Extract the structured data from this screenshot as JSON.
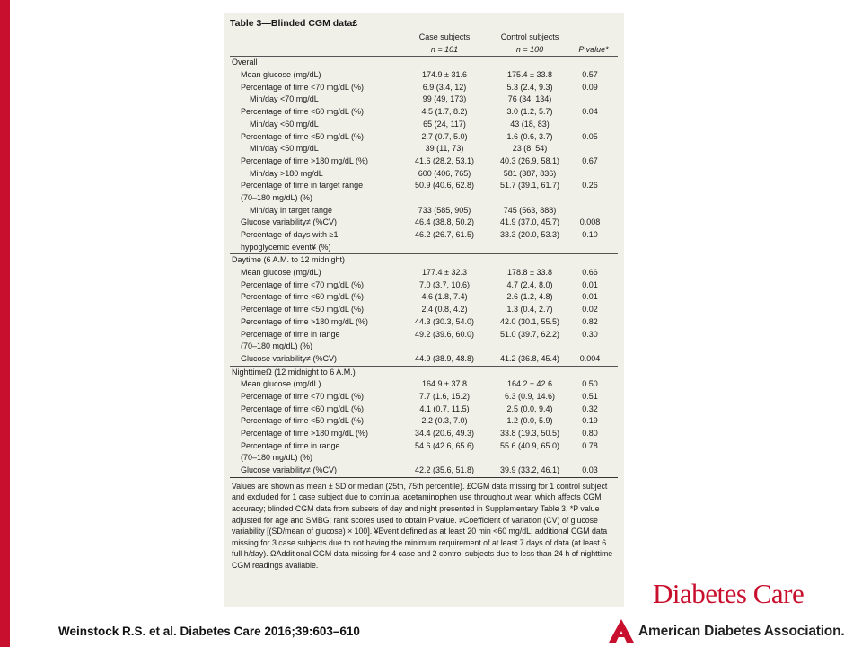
{
  "table": {
    "title": "Table 3—Blinded CGM data£",
    "headers": {
      "case_line1": "Case subjects",
      "case_line2": "n = 101",
      "ctrl_line1": "Control subjects",
      "ctrl_line2": "n = 100",
      "p": "P value*"
    },
    "sections": [
      {
        "heading": "Overall",
        "rows": [
          {
            "label": "Mean glucose (mg/dL)",
            "indent": 1,
            "case": "174.9 ± 31.6",
            "ctrl": "175.4 ± 33.8",
            "p": "0.57"
          },
          {
            "label": "Percentage of time <70 mg/dL (%)",
            "indent": 1,
            "case": "6.9 (3.4, 12)",
            "ctrl": "5.3 (2.4, 9.3)",
            "p": "0.09"
          },
          {
            "label": "Min/day <70 mg/dL",
            "indent": 2,
            "case": "99 (49, 173)",
            "ctrl": "76 (34, 134)",
            "p": ""
          },
          {
            "label": "Percentage of time <60 mg/dL (%)",
            "indent": 1,
            "case": "4.5 (1.7, 8.2)",
            "ctrl": "3.0 (1.2, 5.7)",
            "p": "0.04"
          },
          {
            "label": "Min/day <60 mg/dL",
            "indent": 2,
            "case": "65 (24, 117)",
            "ctrl": "43 (18, 83)",
            "p": ""
          },
          {
            "label": "Percentage of time <50 mg/dL (%)",
            "indent": 1,
            "case": "2.7 (0.7, 5.0)",
            "ctrl": "1.6 (0.6, 3.7)",
            "p": "0.05"
          },
          {
            "label": "Min/day <50 mg/dL",
            "indent": 2,
            "case": "39 (11, 73)",
            "ctrl": "23 (8, 54)",
            "p": ""
          },
          {
            "label": "Percentage of time >180 mg/dL (%)",
            "indent": 1,
            "case": "41.6 (28.2, 53.1)",
            "ctrl": "40.3 (26.9, 58.1)",
            "p": "0.67"
          },
          {
            "label": "Min/day >180 mg/dL",
            "indent": 2,
            "case": "600 (406, 765)",
            "ctrl": "581 (387, 836)",
            "p": ""
          },
          {
            "label": "Percentage of time in target range",
            "indent": 1,
            "case": "50.9 (40.6, 62.8)",
            "ctrl": "51.7 (39.1, 61.7)",
            "p": "0.26"
          },
          {
            "label": "(70–180 mg/dL) (%)",
            "indent": 1,
            "case": "",
            "ctrl": "",
            "p": ""
          },
          {
            "label": "Min/day in target range",
            "indent": 2,
            "case": "733 (585, 905)",
            "ctrl": "745 (563, 888)",
            "p": ""
          },
          {
            "label": "Glucose variability≠ (%CV)",
            "indent": 1,
            "case": "46.4 (38.8, 50.2)",
            "ctrl": "41.9 (37.0, 45.7)",
            "p": "0.008"
          },
          {
            "label": "Percentage of days with ≥1",
            "indent": 1,
            "case": "46.2 (26.7, 61.5)",
            "ctrl": "33.3 (20.0, 53.3)",
            "p": "0.10"
          },
          {
            "label": "hypoglycemic event¥ (%)",
            "indent": 1,
            "case": "",
            "ctrl": "",
            "p": ""
          }
        ]
      },
      {
        "heading": "Daytime (6 A.M. to 12 midnight)",
        "rows": [
          {
            "label": "Mean glucose (mg/dL)",
            "indent": 1,
            "case": "177.4 ± 32.3",
            "ctrl": "178.8 ± 33.8",
            "p": "0.66"
          },
          {
            "label": "Percentage of time <70 mg/dL (%)",
            "indent": 1,
            "case": "7.0 (3.7, 10.6)",
            "ctrl": "4.7 (2.4, 8.0)",
            "p": "0.01"
          },
          {
            "label": "Percentage of time <60 mg/dL (%)",
            "indent": 1,
            "case": "4.6 (1.8, 7.4)",
            "ctrl": "2.6 (1.2, 4.8)",
            "p": "0.01"
          },
          {
            "label": "Percentage of time <50 mg/dL (%)",
            "indent": 1,
            "case": "2.4 (0.8, 4.2)",
            "ctrl": "1.3 (0.4, 2.7)",
            "p": "0.02"
          },
          {
            "label": "Percentage of time >180 mg/dL (%)",
            "indent": 1,
            "case": "44.3 (30.3, 54.0)",
            "ctrl": "42.0 (30.1, 55.5)",
            "p": "0.82"
          },
          {
            "label": "Percentage of time in range",
            "indent": 1,
            "case": "49.2 (39.6, 60.0)",
            "ctrl": "51.0 (39.7, 62.2)",
            "p": "0.30"
          },
          {
            "label": "(70–180 mg/dL) (%)",
            "indent": 1,
            "case": "",
            "ctrl": "",
            "p": ""
          },
          {
            "label": "Glucose variability≠ (%CV)",
            "indent": 1,
            "case": "44.9 (38.9, 48.8)",
            "ctrl": "41.2 (36.8, 45.4)",
            "p": "0.004"
          }
        ]
      },
      {
        "heading": "NighttimeΩ (12 midnight to 6 A.M.)",
        "rows": [
          {
            "label": "Mean glucose (mg/dL)",
            "indent": 1,
            "case": "164.9 ± 37.8",
            "ctrl": "164.2 ± 42.6",
            "p": "0.50"
          },
          {
            "label": "Percentage of time <70 mg/dL (%)",
            "indent": 1,
            "case": "7.7 (1.6, 15.2)",
            "ctrl": "6.3 (0.9, 14.6)",
            "p": "0.51"
          },
          {
            "label": "Percentage of time <60 mg/dL (%)",
            "indent": 1,
            "case": "4.1 (0.7, 11.5)",
            "ctrl": "2.5 (0.0, 9.4)",
            "p": "0.32"
          },
          {
            "label": "Percentage of time <50 mg/dL (%)",
            "indent": 1,
            "case": "2.2 (0.3, 7.0)",
            "ctrl": "1.2 (0.0, 5.9)",
            "p": "0.19"
          },
          {
            "label": "Percentage of time >180 mg/dL (%)",
            "indent": 1,
            "case": "34.4 (20.6, 49.3)",
            "ctrl": "33.8 (19.3, 50.5)",
            "p": "0.80"
          },
          {
            "label": "Percentage of time in range",
            "indent": 1,
            "case": "54.6 (42.6, 65.6)",
            "ctrl": "55.6 (40.9, 65.0)",
            "p": "0.78"
          },
          {
            "label": "(70–180 mg/dL) (%)",
            "indent": 1,
            "case": "",
            "ctrl": "",
            "p": ""
          },
          {
            "label": "Glucose variability≠ (%CV)",
            "indent": 1,
            "case": "42.2 (35.6, 51.8)",
            "ctrl": "39.9 (33.2, 46.1)",
            "p": "0.03"
          }
        ]
      }
    ],
    "footnote": "Values are shown as mean ± SD or median (25th, 75th percentile). £CGM data missing for 1 control subject and excluded for 1 case subject due to continual acetaminophen use throughout wear, which affects CGM accuracy; blinded CGM data from subsets of day and night presented in Supplementary Table 3. *P value adjusted for age and SMBG; rank scores used to obtain P value. ≠Coefficient of variation (CV) of glucose variability [(SD/mean of glucose) × 100]. ¥Event defined as at least 20 min <60 mg/dL; additional CGM data missing for 3 case subjects due to not having the minimum requirement of at least 7 days of data (at least 6 full h/day). ΩAdditional CGM data missing for 4 case and 2 control subjects due to less than 24 h of nighttime CGM readings available."
  },
  "citation": "Weinstock R.S. et al. Diabetes Care 2016;39:603–610",
  "brand": {
    "journal": "Diabetes Care",
    "org": "American Diabetes Association."
  },
  "colors": {
    "accent": "#c8102e",
    "panel": "#f0efe8"
  },
  "icons": {
    "ada_logo": "ada-triangle-logo"
  }
}
